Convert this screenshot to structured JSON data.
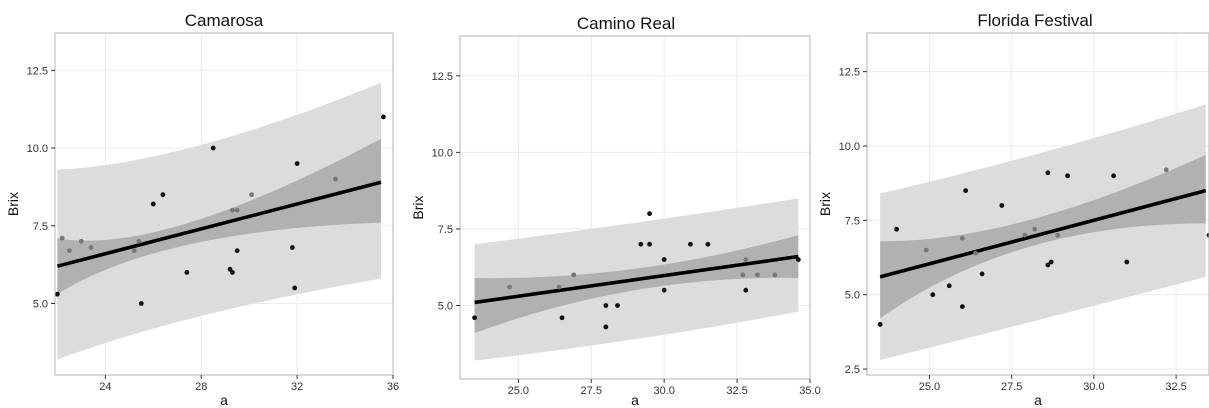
{
  "colors": {
    "background": "#ffffff",
    "panel_border": "#b3b3b3",
    "grid": "#ebebeb",
    "prediction_band": "#dcdcdc",
    "confidence_band": "#a9a9a9",
    "fit_line": "#000000",
    "point_dark": "#111111",
    "point_gray": "#777777"
  },
  "chart_data": [
    {
      "type": "scatter",
      "title": "Camarosa",
      "xlabel": "a",
      "ylabel": "Brix",
      "xlim": [
        21.9,
        36.0
      ],
      "ylim": [
        2.7,
        13.7
      ],
      "xticks": [
        {
          "v": 24,
          "label": "24"
        },
        {
          "v": 28,
          "label": "28"
        },
        {
          "v": 32,
          "label": "32"
        },
        {
          "v": 36,
          "label": "36"
        }
      ],
      "yticks": [
        {
          "v": 5,
          "label": "5.0"
        },
        {
          "v": 7.5,
          "label": "7.5"
        },
        {
          "v": 10,
          "label": "10.0"
        },
        {
          "v": 12.5,
          "label": "12.5"
        }
      ],
      "grid": true,
      "fit": {
        "x0": 22.0,
        "y0": 6.2,
        "x1": 35.5,
        "y1": 8.9
      },
      "confidence_band": [
        {
          "x": 22.0,
          "lo": 5.3,
          "hi": 7.1
        },
        {
          "x": 27.5,
          "lo": 6.9,
          "hi": 7.6
        },
        {
          "x": 35.5,
          "lo": 7.6,
          "hi": 10.3
        }
      ],
      "prediction_band": [
        {
          "x": 22.0,
          "lo": 3.2,
          "hi": 9.3
        },
        {
          "x": 28.0,
          "lo": 4.6,
          "hi": 10.1
        },
        {
          "x": 35.5,
          "lo": 5.8,
          "hi": 12.1
        }
      ],
      "points": [
        {
          "x": 22.0,
          "y": 5.3,
          "tone": "dark"
        },
        {
          "x": 22.2,
          "y": 7.1,
          "tone": "gray"
        },
        {
          "x": 22.5,
          "y": 6.7,
          "tone": "gray"
        },
        {
          "x": 23.0,
          "y": 7.0,
          "tone": "gray"
        },
        {
          "x": 23.4,
          "y": 6.8,
          "tone": "gray"
        },
        {
          "x": 25.2,
          "y": 6.7,
          "tone": "gray"
        },
        {
          "x": 25.4,
          "y": 7.0,
          "tone": "gray"
        },
        {
          "x": 25.5,
          "y": 5.0,
          "tone": "dark"
        },
        {
          "x": 26.0,
          "y": 8.2,
          "tone": "dark"
        },
        {
          "x": 26.4,
          "y": 8.5,
          "tone": "dark"
        },
        {
          "x": 27.4,
          "y": 6.0,
          "tone": "dark"
        },
        {
          "x": 28.5,
          "y": 10.0,
          "tone": "dark"
        },
        {
          "x": 29.2,
          "y": 6.1,
          "tone": "dark"
        },
        {
          "x": 29.3,
          "y": 6.0,
          "tone": "dark"
        },
        {
          "x": 29.3,
          "y": 8.0,
          "tone": "gray"
        },
        {
          "x": 29.5,
          "y": 8.0,
          "tone": "gray"
        },
        {
          "x": 29.5,
          "y": 6.7,
          "tone": "dark"
        },
        {
          "x": 30.1,
          "y": 8.5,
          "tone": "gray"
        },
        {
          "x": 31.8,
          "y": 6.8,
          "tone": "dark"
        },
        {
          "x": 31.9,
          "y": 5.5,
          "tone": "dark"
        },
        {
          "x": 32.0,
          "y": 9.5,
          "tone": "dark"
        },
        {
          "x": 33.6,
          "y": 9.0,
          "tone": "gray"
        },
        {
          "x": 35.6,
          "y": 11.0,
          "tone": "dark"
        }
      ]
    },
    {
      "type": "scatter",
      "title": "Camino Real",
      "xlabel": "a",
      "ylabel": "Brix",
      "xlim": [
        23.0,
        35.0
      ],
      "ylim": [
        2.6,
        13.8
      ],
      "xticks": [
        {
          "v": 25,
          "label": "25.0"
        },
        {
          "v": 27.5,
          "label": "27.5"
        },
        {
          "v": 30,
          "label": "30.0"
        },
        {
          "v": 32.5,
          "label": "32.5"
        },
        {
          "v": 35,
          "label": "35.0"
        }
      ],
      "yticks": [
        {
          "v": 5,
          "label": "5.0"
        },
        {
          "v": 7.5,
          "label": "7.5"
        },
        {
          "v": 10,
          "label": "10.0"
        },
        {
          "v": 12.5,
          "label": "12.5"
        }
      ],
      "grid": true,
      "fit": {
        "x0": 23.5,
        "y0": 5.1,
        "x1": 34.6,
        "y1": 6.6
      },
      "confidence_band": [
        {
          "x": 23.5,
          "lo": 4.1,
          "hi": 5.9
        },
        {
          "x": 29.0,
          "lo": 5.5,
          "hi": 6.2
        },
        {
          "x": 34.6,
          "lo": 5.9,
          "hi": 7.3
        }
      ],
      "prediction_band": [
        {
          "x": 23.5,
          "lo": 3.2,
          "hi": 7.0
        },
        {
          "x": 29.0,
          "lo": 3.9,
          "hi": 7.7
        },
        {
          "x": 34.6,
          "lo": 4.8,
          "hi": 8.5
        }
      ],
      "points": [
        {
          "x": 23.5,
          "y": 4.6,
          "tone": "dark"
        },
        {
          "x": 24.7,
          "y": 5.6,
          "tone": "gray"
        },
        {
          "x": 26.4,
          "y": 5.6,
          "tone": "gray"
        },
        {
          "x": 26.5,
          "y": 4.6,
          "tone": "dark"
        },
        {
          "x": 26.9,
          "y": 6.0,
          "tone": "gray"
        },
        {
          "x": 28.0,
          "y": 5.0,
          "tone": "dark"
        },
        {
          "x": 28.0,
          "y": 4.3,
          "tone": "dark"
        },
        {
          "x": 28.4,
          "y": 5.0,
          "tone": "dark"
        },
        {
          "x": 29.2,
          "y": 7.0,
          "tone": "dark"
        },
        {
          "x": 29.5,
          "y": 8.0,
          "tone": "dark"
        },
        {
          "x": 29.5,
          "y": 7.0,
          "tone": "dark"
        },
        {
          "x": 30.0,
          "y": 6.5,
          "tone": "dark"
        },
        {
          "x": 30.0,
          "y": 5.5,
          "tone": "dark"
        },
        {
          "x": 30.9,
          "y": 7.0,
          "tone": "dark"
        },
        {
          "x": 31.5,
          "y": 7.0,
          "tone": "dark"
        },
        {
          "x": 32.7,
          "y": 6.0,
          "tone": "gray"
        },
        {
          "x": 32.8,
          "y": 6.5,
          "tone": "gray"
        },
        {
          "x": 32.8,
          "y": 5.5,
          "tone": "dark"
        },
        {
          "x": 33.2,
          "y": 6.0,
          "tone": "gray"
        },
        {
          "x": 33.8,
          "y": 6.0,
          "tone": "gray"
        },
        {
          "x": 34.6,
          "y": 6.5,
          "tone": "dark"
        }
      ]
    },
    {
      "type": "scatter",
      "title": "Florida Festival",
      "xlabel": "a",
      "ylabel": "Brix",
      "xlim": [
        23.1,
        33.5
      ],
      "ylim": [
        2.3,
        13.8
      ],
      "xticks": [
        {
          "v": 25,
          "label": "25.0"
        },
        {
          "v": 27.5,
          "label": "27.5"
        },
        {
          "v": 30,
          "label": "30.0"
        },
        {
          "v": 32.5,
          "label": "32.5"
        }
      ],
      "yticks": [
        {
          "v": 2.5,
          "label": "2.5"
        },
        {
          "v": 5,
          "label": "5.0"
        },
        {
          "v": 7.5,
          "label": "7.5"
        },
        {
          "v": 10,
          "label": "10.0"
        },
        {
          "v": 12.5,
          "label": "12.5"
        }
      ],
      "grid": true,
      "fit": {
        "x0": 23.5,
        "y0": 5.6,
        "x1": 33.4,
        "y1": 8.5
      },
      "confidence_band": [
        {
          "x": 23.5,
          "lo": 4.2,
          "hi": 6.8
        },
        {
          "x": 28.0,
          "lo": 6.6,
          "hi": 7.5
        },
        {
          "x": 33.4,
          "lo": 7.4,
          "hi": 9.7
        }
      ],
      "prediction_band": [
        {
          "x": 23.5,
          "lo": 2.8,
          "hi": 8.4
        },
        {
          "x": 28.5,
          "lo": 4.2,
          "hi": 9.8
        },
        {
          "x": 33.4,
          "lo": 5.6,
          "hi": 11.4
        }
      ],
      "points": [
        {
          "x": 23.5,
          "y": 4.0,
          "tone": "dark"
        },
        {
          "x": 24.0,
          "y": 7.2,
          "tone": "dark"
        },
        {
          "x": 24.9,
          "y": 6.5,
          "tone": "gray"
        },
        {
          "x": 25.1,
          "y": 5.0,
          "tone": "dark"
        },
        {
          "x": 25.6,
          "y": 5.3,
          "tone": "dark"
        },
        {
          "x": 26.0,
          "y": 6.9,
          "tone": "gray"
        },
        {
          "x": 26.0,
          "y": 4.6,
          "tone": "dark"
        },
        {
          "x": 26.1,
          "y": 8.5,
          "tone": "dark"
        },
        {
          "x": 26.4,
          "y": 6.4,
          "tone": "gray"
        },
        {
          "x": 26.6,
          "y": 5.7,
          "tone": "dark"
        },
        {
          "x": 27.2,
          "y": 8.0,
          "tone": "dark"
        },
        {
          "x": 27.9,
          "y": 7.0,
          "tone": "gray"
        },
        {
          "x": 28.2,
          "y": 7.2,
          "tone": "gray"
        },
        {
          "x": 28.6,
          "y": 9.1,
          "tone": "dark"
        },
        {
          "x": 28.6,
          "y": 6.0,
          "tone": "dark"
        },
        {
          "x": 28.7,
          "y": 6.1,
          "tone": "dark"
        },
        {
          "x": 28.9,
          "y": 7.0,
          "tone": "gray"
        },
        {
          "x": 29.2,
          "y": 9.0,
          "tone": "dark"
        },
        {
          "x": 30.6,
          "y": 9.0,
          "tone": "dark"
        },
        {
          "x": 31.0,
          "y": 6.1,
          "tone": "dark"
        },
        {
          "x": 32.2,
          "y": 9.2,
          "tone": "gray"
        },
        {
          "x": 33.5,
          "y": 7.0,
          "tone": "dark"
        }
      ]
    }
  ]
}
